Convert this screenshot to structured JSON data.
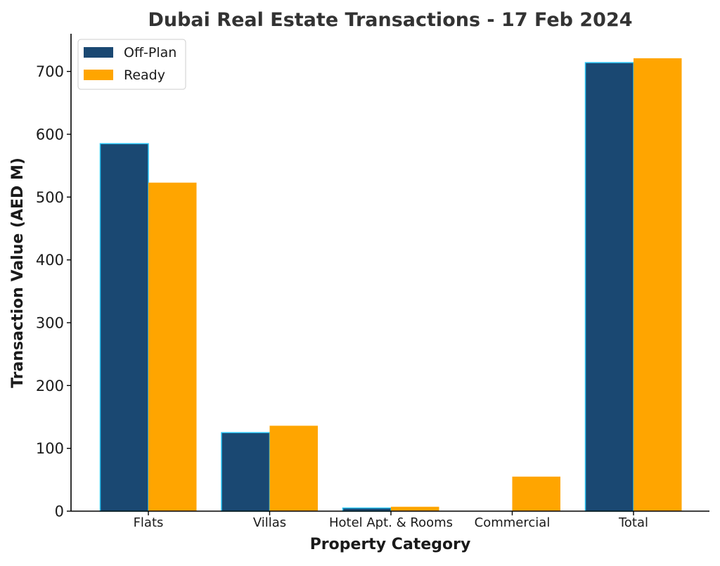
{
  "chart_data": {
    "type": "bar",
    "title": "Dubai Real Estate Transactions - 17 Feb 2024",
    "xlabel": "Property Category",
    "ylabel": "Transaction Value (AED M)",
    "categories": [
      "Flats",
      "Villas",
      "Hotel Apt. & Rooms",
      "Commercial",
      "Total"
    ],
    "series": [
      {
        "name": "Off-Plan",
        "values": [
          585,
          125,
          5,
          0,
          714
        ],
        "color": "#1a4872",
        "edge_color": "#29c4f5"
      },
      {
        "name": "Ready",
        "values": [
          523,
          136,
          7,
          55,
          721
        ],
        "color": "#ffa500"
      }
    ],
    "ylim": [
      0,
      760
    ],
    "yticks": [
      0,
      100,
      200,
      300,
      400,
      500,
      600,
      700
    ],
    "grid": false,
    "legend_position": "top-left"
  }
}
